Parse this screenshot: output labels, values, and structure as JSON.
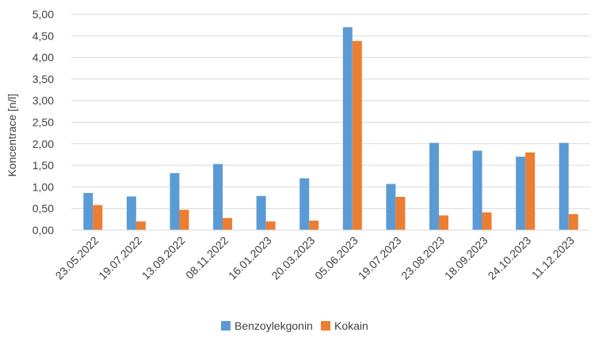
{
  "chart_data": {
    "type": "bar",
    "title": "",
    "xlabel": "",
    "ylabel": "Koncentrace [n/l]",
    "ylim": [
      0,
      5
    ],
    "ytick_step": 0.5,
    "ytick_labels": [
      "0,00",
      "0,50",
      "1,00",
      "1,50",
      "2,00",
      "2,50",
      "3,00",
      "3,50",
      "4,00",
      "4,50",
      "5,00"
    ],
    "grid": true,
    "legend_position": "bottom",
    "categories": [
      "23.05.2022",
      "19.07.2022",
      "13.09.2022",
      "08.11.2022",
      "16.01.2023",
      "20.03.2023",
      "05.06.2023",
      "19.07.2023",
      "23.08.2023",
      "18.09.2023",
      "24.10.2023",
      "11.12.2023"
    ],
    "series": [
      {
        "name": "Benzoylekgonin",
        "color": "#5b9bd5",
        "values": [
          0.86,
          0.78,
          1.32,
          1.53,
          0.79,
          1.2,
          4.7,
          1.07,
          2.02,
          1.84,
          1.7,
          2.02
        ]
      },
      {
        "name": "Kokain",
        "color": "#ed7d31",
        "values": [
          0.58,
          0.2,
          0.47,
          0.28,
          0.2,
          0.22,
          4.38,
          0.77,
          0.34,
          0.41,
          1.8,
          0.37
        ]
      }
    ]
  }
}
